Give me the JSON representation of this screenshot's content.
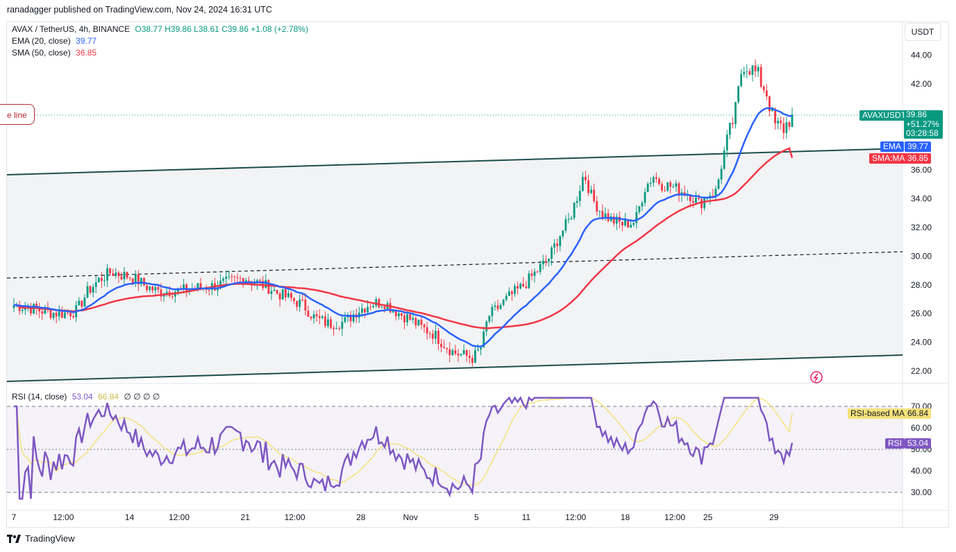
{
  "publisher": "ranadagger published on TradingView.com, Nov 24, 2024 16:31 UTC",
  "legend": {
    "symbol": "AVAX / TetherUS, 4h, BINANCE",
    "ohlc": "O38.77  H39.86  L38.61  C39.86  +1.08 (+2.78%)",
    "ema_label": "EMA (20, close)",
    "ema_value": "39.77",
    "sma_label": "SMA (50, close)",
    "sma_value": "36.85",
    "rsi_label": "RSI (14, close)",
    "rsi_value": "53.04",
    "rsi_ma_value": "66.84",
    "rsi_extras": "∅  ∅  ∅  ∅"
  },
  "currency_button": "USDT",
  "trendline_label": "e line",
  "price_tags": {
    "symbol": "AVAXUSDT",
    "price": "39.86",
    "change": "+51.27%",
    "countdown": "03:28:58",
    "ema_name": "EMA",
    "ema": "39.77",
    "sma_name": "SMA:MA",
    "sma": "36.85"
  },
  "rsi_tags": {
    "ma_name": "RSI-based MA",
    "ma": "66.84",
    "rsi_name": "RSI",
    "rsi": "53.04"
  },
  "footer_brand": "TradingView",
  "colors": {
    "up": "#089981",
    "down": "#f23645",
    "ema": "#2962ff",
    "sma": "#f23645",
    "rsi": "#7e57c2",
    "rsi_ma": "#f5e27a",
    "channel": "#1e4d4d",
    "tag_teal": "#089981"
  },
  "chart_data": [
    {
      "type": "candlestick",
      "title": "AVAX / TetherUS, 4h, BINANCE",
      "ylim": [
        21.2,
        45.5
      ],
      "y_ticks": [
        "44.00",
        "42.00",
        "36.00",
        "34.00",
        "32.00",
        "30.00",
        "28.00",
        "26.00",
        "24.00",
        "22.00"
      ],
      "x_ticks": [
        "7",
        "12:00",
        "14",
        "12:00",
        "21",
        "12:00",
        "28",
        "Nov",
        "5",
        "11",
        "12:00",
        "18",
        "12:00",
        "25",
        "29"
      ],
      "x_days": [
        0,
        3,
        7,
        10,
        14,
        17,
        21,
        24,
        28,
        31,
        34,
        37,
        40,
        42,
        46
      ],
      "close_points": [
        [
          0,
          26.6
        ],
        [
          1,
          26.4
        ],
        [
          2,
          26.1
        ],
        [
          3,
          26.0
        ],
        [
          3.8,
          26.2
        ],
        [
          4.5,
          27.6
        ],
        [
          5.2,
          28.4
        ],
        [
          5.9,
          28.9
        ],
        [
          6.5,
          28.7
        ],
        [
          7.0,
          28.6
        ],
        [
          7.5,
          28.3
        ],
        [
          8.0,
          27.9
        ],
        [
          8.8,
          27.5
        ],
        [
          9.5,
          27.6
        ],
        [
          10.2,
          27.6
        ],
        [
          11.0,
          27.8
        ],
        [
          12.0,
          27.9
        ],
        [
          13.0,
          28.2
        ],
        [
          14.0,
          28.5
        ],
        [
          14.6,
          28.2
        ],
        [
          15.3,
          27.9
        ],
        [
          16.0,
          27.4
        ],
        [
          16.8,
          27.0
        ],
        [
          17.5,
          26.6
        ],
        [
          18.2,
          25.7
        ],
        [
          19.0,
          25.3
        ],
        [
          20.0,
          25.4
        ],
        [
          20.8,
          26.2
        ],
        [
          21.6,
          26.7
        ],
        [
          22.4,
          26.8
        ],
        [
          23.2,
          26.1
        ],
        [
          24.0,
          25.6
        ],
        [
          24.7,
          25.0
        ],
        [
          25.4,
          24.6
        ],
        [
          26.0,
          23.9
        ],
        [
          26.6,
          23.3
        ],
        [
          27.2,
          23.1
        ],
        [
          27.8,
          22.9
        ],
        [
          28.3,
          23.7
        ],
        [
          28.7,
          25.8
        ],
        [
          29.2,
          26.3
        ],
        [
          30.0,
          27.2
        ],
        [
          30.8,
          27.9
        ],
        [
          31.6,
          28.9
        ],
        [
          32.4,
          29.9
        ],
        [
          33.0,
          31.4
        ],
        [
          33.6,
          32.5
        ],
        [
          34.1,
          34.2
        ],
        [
          34.5,
          35.8
        ],
        [
          35.0,
          34.0
        ],
        [
          35.6,
          33.0
        ],
        [
          36.2,
          32.5
        ],
        [
          36.9,
          32.2
        ],
        [
          37.6,
          32.4
        ],
        [
          38.2,
          34.8
        ],
        [
          38.7,
          35.6
        ],
        [
          39.2,
          35.0
        ],
        [
          39.7,
          34.9
        ],
        [
          40.3,
          34.6
        ],
        [
          40.9,
          34.3
        ],
        [
          41.5,
          33.6
        ],
        [
          42.0,
          34.3
        ],
        [
          42.5,
          34.5
        ],
        [
          42.9,
          36.8
        ],
        [
          43.3,
          38.5
        ],
        [
          43.7,
          40.2
        ],
        [
          44.1,
          43.5
        ],
        [
          44.5,
          43.2
        ],
        [
          45.0,
          42.6
        ],
        [
          45.6,
          41.3
        ],
        [
          46.0,
          39.1
        ],
        [
          46.6,
          38.9
        ],
        [
          47.1,
          39.86
        ]
      ]
    },
    {
      "type": "line",
      "title": "RSI (14, close)",
      "ylim": [
        25,
        76
      ],
      "y_ticks": [
        "70.00",
        "60.00",
        "50.00",
        "40.00",
        "30.00"
      ],
      "bands": [
        30,
        50,
        70
      ],
      "rsi_last": 53.04,
      "rsi_ma_last": 66.84
    }
  ]
}
